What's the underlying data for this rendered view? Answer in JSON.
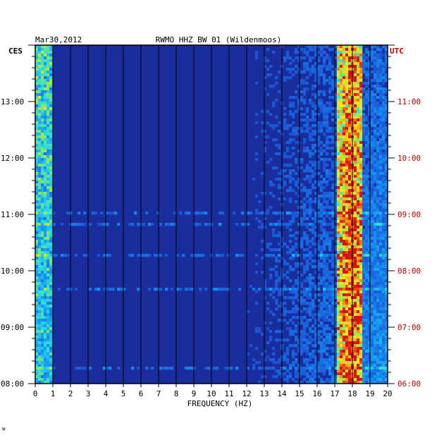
{
  "chart_data": {
    "type": "heatmap",
    "header_left": "Mar30,2012",
    "header_center": "RWMO HHZ BW 01 (Wildenmoos)",
    "left_tz": "CES",
    "right_tz": "UTC",
    "xlabel": "FREQUENCY (HZ)",
    "xlim": [
      0,
      20
    ],
    "x_ticks": [
      "0",
      "1",
      "2",
      "3",
      "4",
      "5",
      "6",
      "7",
      "8",
      "9",
      "10",
      "11",
      "12",
      "13",
      "14",
      "15",
      "16",
      "17",
      "18",
      "19",
      "20"
    ],
    "left_time_labels": [
      "13:00",
      "12:00",
      "11:00",
      "10:00",
      "09:00",
      "08:00"
    ],
    "right_time_labels": [
      "11:00",
      "10:00",
      "09:00",
      "08:00",
      "07:00",
      "06:00"
    ],
    "time_range_cest": [
      "08:00",
      "14:00"
    ],
    "dominant_band_hz": [
      17.2,
      18.6
    ],
    "dominant_peak_hz": 17.9,
    "low_freq_band_hz": [
      0,
      1
    ],
    "colors": {
      "background": "#1a2d9c",
      "accent": "#cc0000"
    },
    "footer_mark": "ᵂ"
  }
}
